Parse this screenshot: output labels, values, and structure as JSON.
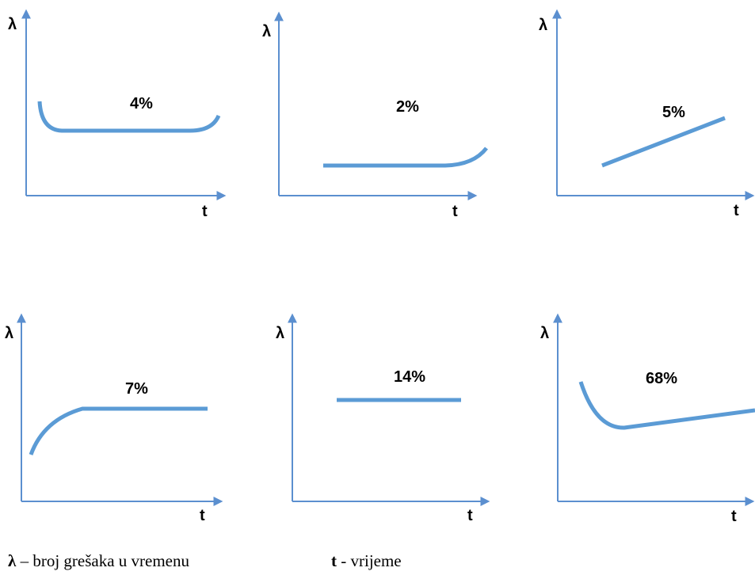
{
  "chart_data": [
    {
      "type": "line",
      "ylabel": "λ",
      "xlabel": "t",
      "annotation": "4%",
      "shape": "bathtub",
      "colors": {
        "axis": "#5b8fcf",
        "curve": "#5b9bd5"
      }
    },
    {
      "type": "line",
      "ylabel": "λ",
      "xlabel": "t",
      "annotation": "2%",
      "shape": "constant then rising at end (wear-out)",
      "colors": {
        "axis": "#5b8fcf",
        "curve": "#5b9bd5"
      }
    },
    {
      "type": "line",
      "ylabel": "λ",
      "xlabel": "t",
      "annotation": "5%",
      "shape": "steadily increasing",
      "colors": {
        "axis": "#5b8fcf",
        "curve": "#5b9bd5"
      }
    },
    {
      "type": "line",
      "ylabel": "λ",
      "xlabel": "t",
      "annotation": "7%",
      "shape": "rising then constant",
      "colors": {
        "axis": "#5b8fcf",
        "curve": "#5b9bd5"
      }
    },
    {
      "type": "line",
      "ylabel": "λ",
      "xlabel": "t",
      "annotation": "14%",
      "shape": "constant",
      "colors": {
        "axis": "#5b8fcf",
        "curve": "#5b9bd5"
      }
    },
    {
      "type": "line",
      "ylabel": "λ",
      "xlabel": "t",
      "annotation": "68%",
      "shape": "decreasing then slowly increasing",
      "colors": {
        "axis": "#5b8fcf",
        "curve": "#5b9bd5"
      }
    }
  ],
  "legend": {
    "lambda_symbol": "λ",
    "lambda_text": " – broj grešaka u vremenu",
    "t_symbol": "t",
    "t_text": " - vrijeme"
  }
}
